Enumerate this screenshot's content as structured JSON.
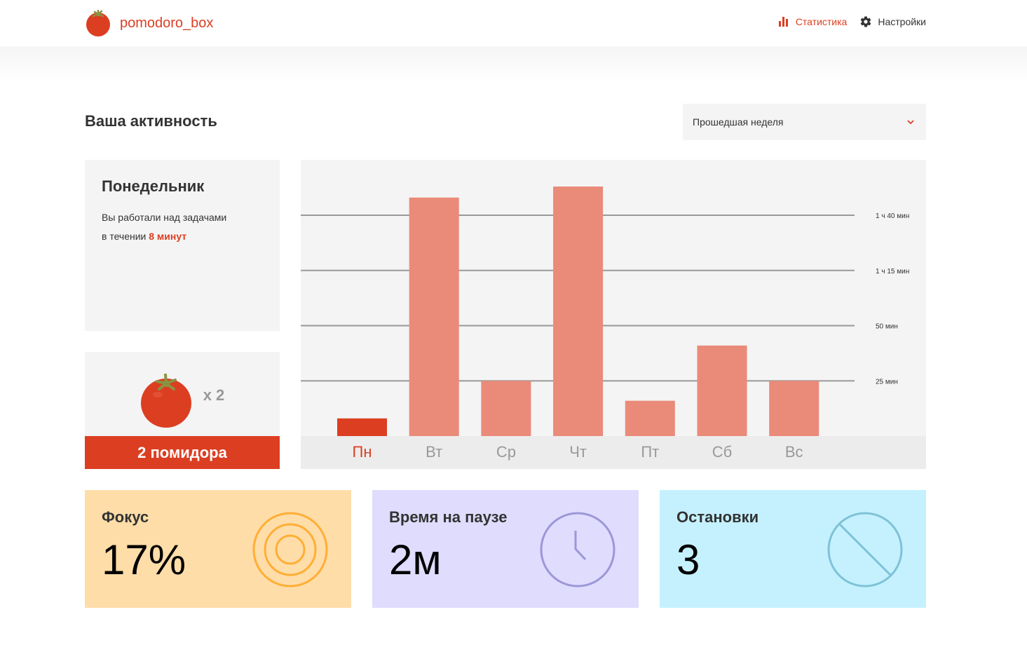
{
  "header": {
    "logo_text": "pomodoro_box",
    "nav": {
      "stats_label": "Статистика",
      "settings_label": "Настройки"
    }
  },
  "main": {
    "title": "Ваша активность",
    "period_select": {
      "selected": "Прошедшая неделя"
    },
    "day_card": {
      "title": "Понедельник",
      "line1": "Вы работали над задачами",
      "line2_prefix": "в течении ",
      "line2_accent": "8 минут"
    },
    "tomato_card": {
      "count_label": "x 2",
      "footer_label": "2 помидора"
    },
    "stats": {
      "focus": {
        "title": "Фокус",
        "value": "17%"
      },
      "pause": {
        "title": "Время на паузе",
        "value": "2м"
      },
      "stops": {
        "title": "Остановки",
        "value": "3"
      }
    }
  },
  "colors": {
    "accent": "#dc3e22",
    "bar": "#ea8a79",
    "bar_active": "#dc3e22",
    "focus_bg": "#ffdda9",
    "pause_bg": "#dfdcfe",
    "stops_bg": "#c5f1ff"
  },
  "chart_data": {
    "type": "bar",
    "categories": [
      "Пн",
      "Вт",
      "Ср",
      "Чт",
      "Пт",
      "Сб",
      "Вс"
    ],
    "values": [
      8,
      108,
      25,
      113,
      16,
      41,
      25
    ],
    "selected_index": 0,
    "y_ticks": [
      25,
      50,
      75,
      100
    ],
    "y_tick_labels": [
      "25 мин",
      "50 мин",
      "1 ч 15 мин",
      "1 ч 40 мин"
    ],
    "ylim": [
      0,
      125
    ],
    "grid": true
  }
}
